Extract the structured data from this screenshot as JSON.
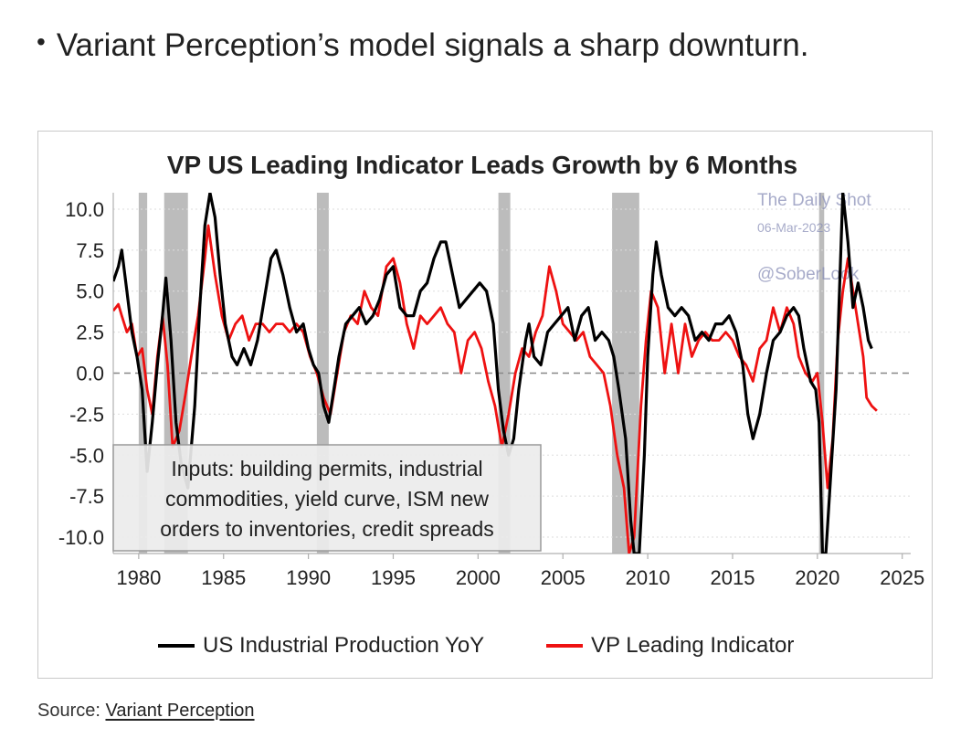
{
  "bullet": {
    "symbol": "•",
    "text": "Variant Perception’s model signals a sharp downturn."
  },
  "source": {
    "prefix": "Source: ",
    "link_text": "Variant Perception"
  },
  "watermark": {
    "line1": "The Daily Shot",
    "line2": "06-Mar-2023",
    "line3": "@SoberLook"
  },
  "colors": {
    "industrial_production": "#000000",
    "leading_indicator": "#ee1111",
    "recession": "#bcbcbc",
    "text": "#222222"
  },
  "chart_data": {
    "type": "line",
    "title": "VP US Leading Indicator Leads Growth by 6 Months",
    "xlabel": "",
    "ylabel": "",
    "xlim": [
      1978.5,
      2025.5
    ],
    "ylim": [
      -11,
      11
    ],
    "xticks": [
      1980,
      1985,
      1990,
      1995,
      2000,
      2005,
      2010,
      2015,
      2020,
      2025
    ],
    "yticks": [
      10.0,
      7.5,
      5.0,
      2.5,
      0.0,
      -2.5,
      -5.0,
      -7.5,
      -10.0
    ],
    "ytick_labels": [
      "10.0",
      "7.5",
      "5.0",
      "2.5",
      "0.0",
      "-2.5",
      "-5.0",
      "-7.5",
      "-10.0"
    ],
    "zero_line": "dashed",
    "grid": "horizontal dotted",
    "recessions": [
      [
        1980.0,
        1980.5
      ],
      [
        1981.5,
        1982.9
      ],
      [
        1990.5,
        1991.2
      ],
      [
        2001.2,
        2001.9
      ],
      [
        2007.9,
        2009.5
      ],
      [
        2020.1,
        2020.4
      ]
    ],
    "legend_position": "bottom-center",
    "annotation": {
      "lines": [
        "Inputs: building permits, industrial",
        "commodities, yield curve, ISM new",
        "orders to inventories, credit spreads"
      ],
      "position": "bottom-left"
    },
    "series": [
      {
        "name": "US Industrial Production YoY",
        "color": "#000000",
        "points": [
          [
            1978.5,
            5.6
          ],
          [
            1978.8,
            6.5
          ],
          [
            1979.0,
            7.5
          ],
          [
            1979.3,
            5.0
          ],
          [
            1979.6,
            2.5
          ],
          [
            1979.9,
            1.0
          ],
          [
            1980.2,
            -1.0
          ],
          [
            1980.5,
            -6.0
          ],
          [
            1980.8,
            -3.0
          ],
          [
            1981.1,
            0.5
          ],
          [
            1981.4,
            3.5
          ],
          [
            1981.6,
            5.8
          ],
          [
            1981.9,
            2.0
          ],
          [
            1982.2,
            -3.0
          ],
          [
            1982.5,
            -5.5
          ],
          [
            1982.9,
            -7.0
          ],
          [
            1983.3,
            -2.0
          ],
          [
            1983.6,
            4.0
          ],
          [
            1983.9,
            9.0
          ],
          [
            1984.2,
            11.0
          ],
          [
            1984.5,
            9.5
          ],
          [
            1984.8,
            6.0
          ],
          [
            1985.1,
            3.0
          ],
          [
            1985.5,
            1.0
          ],
          [
            1985.8,
            0.5
          ],
          [
            1986.2,
            1.5
          ],
          [
            1986.6,
            0.5
          ],
          [
            1987.0,
            2.0
          ],
          [
            1987.4,
            4.5
          ],
          [
            1987.8,
            7.0
          ],
          [
            1988.1,
            7.5
          ],
          [
            1988.5,
            6.0
          ],
          [
            1988.9,
            4.0
          ],
          [
            1989.3,
            2.5
          ],
          [
            1989.7,
            3.0
          ],
          [
            1990.0,
            1.5
          ],
          [
            1990.3,
            0.5
          ],
          [
            1990.6,
            0.0
          ],
          [
            1990.9,
            -2.0
          ],
          [
            1991.2,
            -3.0
          ],
          [
            1991.5,
            -1.0
          ],
          [
            1991.8,
            1.0
          ],
          [
            1992.2,
            3.0
          ],
          [
            1992.6,
            3.5
          ],
          [
            1993.0,
            4.0
          ],
          [
            1993.4,
            3.0
          ],
          [
            1993.8,
            3.5
          ],
          [
            1994.2,
            4.5
          ],
          [
            1994.6,
            6.0
          ],
          [
            1995.0,
            6.5
          ],
          [
            1995.4,
            4.0
          ],
          [
            1995.8,
            3.5
          ],
          [
            1996.2,
            3.5
          ],
          [
            1996.6,
            5.0
          ],
          [
            1997.0,
            5.5
          ],
          [
            1997.4,
            7.0
          ],
          [
            1997.8,
            8.0
          ],
          [
            1998.1,
            8.0
          ],
          [
            1998.5,
            6.0
          ],
          [
            1998.9,
            4.0
          ],
          [
            1999.3,
            4.5
          ],
          [
            1999.7,
            5.0
          ],
          [
            2000.1,
            5.5
          ],
          [
            2000.5,
            5.0
          ],
          [
            2000.9,
            3.0
          ],
          [
            2001.2,
            -1.0
          ],
          [
            2001.5,
            -3.5
          ],
          [
            2001.8,
            -5.0
          ],
          [
            2002.1,
            -4.0
          ],
          [
            2002.4,
            -1.0
          ],
          [
            2002.8,
            2.0
          ],
          [
            2003.0,
            3.0
          ],
          [
            2003.3,
            1.0
          ],
          [
            2003.7,
            0.5
          ],
          [
            2004.1,
            2.5
          ],
          [
            2004.5,
            3.0
          ],
          [
            2004.9,
            3.5
          ],
          [
            2005.3,
            4.0
          ],
          [
            2005.7,
            2.0
          ],
          [
            2006.1,
            3.5
          ],
          [
            2006.5,
            4.0
          ],
          [
            2006.9,
            2.0
          ],
          [
            2007.3,
            2.5
          ],
          [
            2007.7,
            2.0
          ],
          [
            2008.0,
            1.0
          ],
          [
            2008.3,
            -1.0
          ],
          [
            2008.7,
            -4.0
          ],
          [
            2009.0,
            -9.0
          ],
          [
            2009.2,
            -11.0
          ],
          [
            2009.5,
            -11.0
          ],
          [
            2009.8,
            -5.0
          ],
          [
            2010.0,
            1.0
          ],
          [
            2010.3,
            6.0
          ],
          [
            2010.5,
            8.0
          ],
          [
            2010.8,
            6.0
          ],
          [
            2011.2,
            4.0
          ],
          [
            2011.6,
            3.5
          ],
          [
            2012.0,
            4.0
          ],
          [
            2012.4,
            3.5
          ],
          [
            2012.8,
            2.0
          ],
          [
            2013.2,
            2.5
          ],
          [
            2013.6,
            2.0
          ],
          [
            2014.0,
            3.0
          ],
          [
            2014.4,
            3.0
          ],
          [
            2014.8,
            3.5
          ],
          [
            2015.2,
            2.5
          ],
          [
            2015.6,
            0.5
          ],
          [
            2015.9,
            -2.5
          ],
          [
            2016.2,
            -4.0
          ],
          [
            2016.6,
            -2.5
          ],
          [
            2017.0,
            0.0
          ],
          [
            2017.4,
            2.0
          ],
          [
            2017.8,
            2.5
          ],
          [
            2018.2,
            3.5
          ],
          [
            2018.6,
            4.0
          ],
          [
            2018.9,
            3.5
          ],
          [
            2019.2,
            1.5
          ],
          [
            2019.6,
            -0.5
          ],
          [
            2019.9,
            -1.0
          ],
          [
            2020.1,
            -3.0
          ],
          [
            2020.3,
            -11.0
          ],
          [
            2020.5,
            -11.0
          ],
          [
            2020.8,
            -6.0
          ],
          [
            2021.1,
            -1.0
          ],
          [
            2021.3,
            5.0
          ],
          [
            2021.5,
            11.0
          ],
          [
            2021.8,
            8.0
          ],
          [
            2022.1,
            4.0
          ],
          [
            2022.4,
            5.5
          ],
          [
            2022.7,
            4.0
          ],
          [
            2023.0,
            2.0
          ],
          [
            2023.2,
            1.5
          ]
        ]
      },
      {
        "name": "VP Leading Indicator",
        "color": "#ee1111",
        "points": [
          [
            1978.5,
            3.8
          ],
          [
            1978.8,
            4.2
          ],
          [
            1979.0,
            3.5
          ],
          [
            1979.3,
            2.5
          ],
          [
            1979.6,
            3.0
          ],
          [
            1979.9,
            1.0
          ],
          [
            1980.2,
            1.5
          ],
          [
            1980.5,
            -1.0
          ],
          [
            1980.8,
            -2.5
          ],
          [
            1981.1,
            1.0
          ],
          [
            1981.4,
            3.5
          ],
          [
            1981.7,
            0.5
          ],
          [
            1982.0,
            -4.5
          ],
          [
            1982.4,
            -3.5
          ],
          [
            1982.8,
            -1.0
          ],
          [
            1983.1,
            1.0
          ],
          [
            1983.5,
            3.5
          ],
          [
            1983.9,
            7.0
          ],
          [
            1984.1,
            9.0
          ],
          [
            1984.5,
            6.0
          ],
          [
            1984.9,
            3.5
          ],
          [
            1985.3,
            2.0
          ],
          [
            1985.7,
            3.0
          ],
          [
            1986.1,
            3.5
          ],
          [
            1986.5,
            2.0
          ],
          [
            1986.9,
            3.0
          ],
          [
            1987.3,
            3.0
          ],
          [
            1987.7,
            2.5
          ],
          [
            1988.1,
            3.0
          ],
          [
            1988.5,
            3.0
          ],
          [
            1988.9,
            2.5
          ],
          [
            1989.3,
            3.0
          ],
          [
            1989.7,
            2.5
          ],
          [
            1990.1,
            1.0
          ],
          [
            1990.5,
            0.0
          ],
          [
            1990.9,
            -1.5
          ],
          [
            1991.3,
            -2.5
          ],
          [
            1991.7,
            0.0
          ],
          [
            1992.1,
            2.5
          ],
          [
            1992.5,
            3.5
          ],
          [
            1992.9,
            3.0
          ],
          [
            1993.3,
            5.0
          ],
          [
            1993.7,
            4.0
          ],
          [
            1994.1,
            3.5
          ],
          [
            1994.6,
            6.5
          ],
          [
            1995.0,
            7.0
          ],
          [
            1995.4,
            5.5
          ],
          [
            1995.8,
            3.0
          ],
          [
            1996.2,
            1.5
          ],
          [
            1996.6,
            3.5
          ],
          [
            1997.0,
            3.0
          ],
          [
            1997.4,
            3.5
          ],
          [
            1997.8,
            4.0
          ],
          [
            1998.2,
            3.0
          ],
          [
            1998.6,
            2.5
          ],
          [
            1999.0,
            0.0
          ],
          [
            1999.4,
            2.0
          ],
          [
            1999.8,
            2.5
          ],
          [
            2000.2,
            1.5
          ],
          [
            2000.6,
            -0.5
          ],
          [
            2001.0,
            -2.0
          ],
          [
            2001.4,
            -4.5
          ],
          [
            2001.8,
            -2.5
          ],
          [
            2002.2,
            0.0
          ],
          [
            2002.6,
            1.5
          ],
          [
            2003.0,
            1.0
          ],
          [
            2003.4,
            2.5
          ],
          [
            2003.8,
            3.5
          ],
          [
            2004.2,
            6.5
          ],
          [
            2004.6,
            5.0
          ],
          [
            2005.0,
            3.0
          ],
          [
            2005.4,
            2.5
          ],
          [
            2005.8,
            2.0
          ],
          [
            2006.2,
            2.5
          ],
          [
            2006.6,
            1.0
          ],
          [
            2007.0,
            0.5
          ],
          [
            2007.4,
            0.0
          ],
          [
            2007.8,
            -2.0
          ],
          [
            2008.2,
            -5.0
          ],
          [
            2008.6,
            -7.0
          ],
          [
            2008.9,
            -11.0
          ],
          [
            2009.2,
            -10.0
          ],
          [
            2009.6,
            -2.0
          ],
          [
            2009.9,
            2.0
          ],
          [
            2010.2,
            5.0
          ],
          [
            2010.6,
            4.0
          ],
          [
            2011.0,
            0.0
          ],
          [
            2011.4,
            3.0
          ],
          [
            2011.8,
            0.0
          ],
          [
            2012.2,
            3.0
          ],
          [
            2012.6,
            1.0
          ],
          [
            2013.0,
            2.0
          ],
          [
            2013.4,
            2.5
          ],
          [
            2013.8,
            2.0
          ],
          [
            2014.2,
            2.0
          ],
          [
            2014.6,
            2.5
          ],
          [
            2015.0,
            2.0
          ],
          [
            2015.4,
            1.0
          ],
          [
            2015.8,
            0.5
          ],
          [
            2016.2,
            -0.5
          ],
          [
            2016.6,
            1.5
          ],
          [
            2017.0,
            2.0
          ],
          [
            2017.4,
            4.0
          ],
          [
            2017.8,
            2.5
          ],
          [
            2018.2,
            4.0
          ],
          [
            2018.6,
            3.0
          ],
          [
            2018.9,
            1.0
          ],
          [
            2019.3,
            0.0
          ],
          [
            2019.7,
            -0.5
          ],
          [
            2020.0,
            0.0
          ],
          [
            2020.3,
            -3.0
          ],
          [
            2020.6,
            -7.0
          ],
          [
            2020.9,
            -4.0
          ],
          [
            2021.2,
            2.0
          ],
          [
            2021.5,
            5.0
          ],
          [
            2021.8,
            7.0
          ],
          [
            2022.1,
            5.0
          ],
          [
            2022.4,
            3.0
          ],
          [
            2022.7,
            1.0
          ],
          [
            2022.9,
            -1.5
          ],
          [
            2023.2,
            -2.0
          ],
          [
            2023.5,
            -2.3
          ]
        ]
      }
    ]
  }
}
